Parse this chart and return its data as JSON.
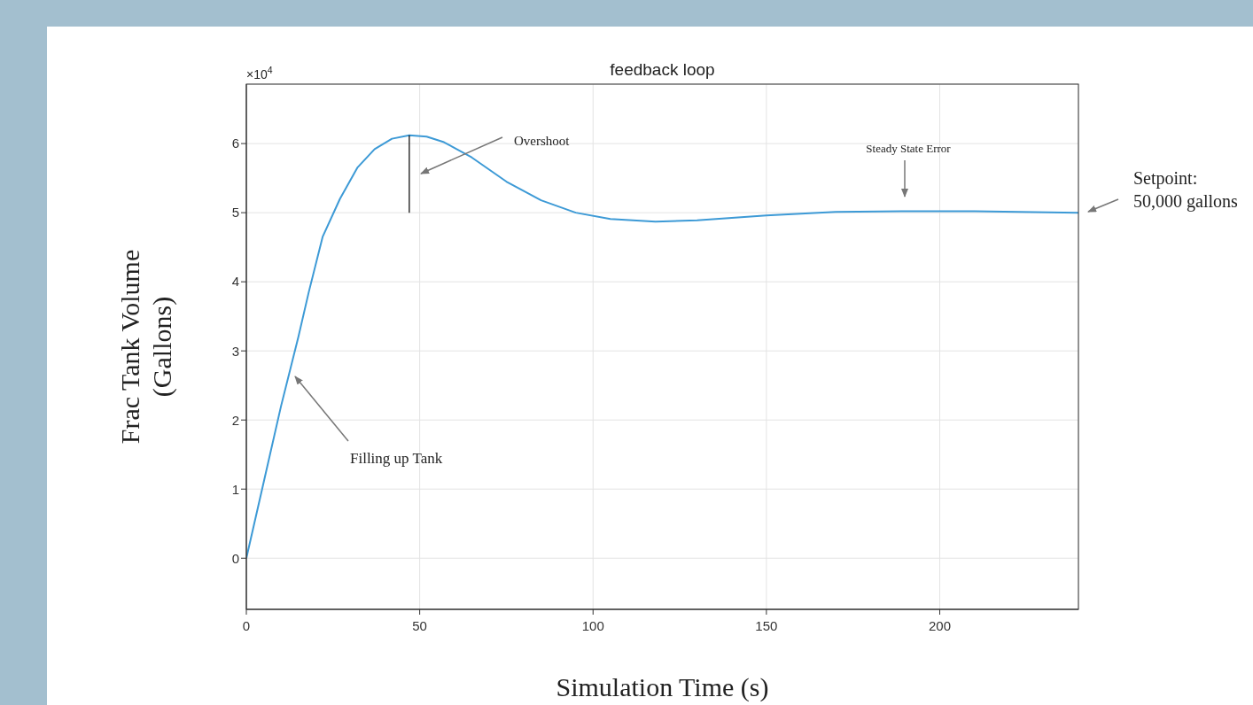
{
  "chart_data": {
    "type": "line",
    "title": "feedback loop",
    "xlabel": "Simulation Time (s)",
    "ylabel": "Frac Tank Volume\n(Gallons)",
    "x": [
      0,
      5,
      10,
      15,
      18,
      22,
      27,
      32,
      37,
      42,
      47,
      52,
      57,
      65,
      75,
      85,
      95,
      105,
      118,
      130,
      150,
      170,
      190,
      210,
      240
    ],
    "series": [
      {
        "color": "#3d9ad6",
        "values": [
          0,
          1.1,
          2.2,
          3.2,
          3.85,
          4.65,
          5.2,
          5.65,
          5.92,
          6.07,
          6.12,
          6.1,
          6.02,
          5.8,
          5.45,
          5.18,
          5.0,
          4.91,
          4.87,
          4.89,
          4.96,
          5.01,
          5.02,
          5.02,
          5.0
        ]
      },
      {
        "type": "line",
        "color": "#000000",
        "x": [
          47,
          47
        ],
        "values": [
          5.0,
          6.12
        ]
      }
    ],
    "xlim": [
      0,
      240
    ],
    "xticks": [
      0,
      50,
      100,
      150,
      200
    ],
    "ylim": [
      -0.74,
      6.86
    ],
    "yticks": [
      0,
      1,
      2,
      3,
      4,
      5,
      6
    ],
    "grid": true,
    "annotations": [
      "×10$^{4}$",
      "Overshoot",
      "Steady State Error",
      "Filling up Tank",
      "Setpoint:\n50,000 gallons"
    ]
  }
}
